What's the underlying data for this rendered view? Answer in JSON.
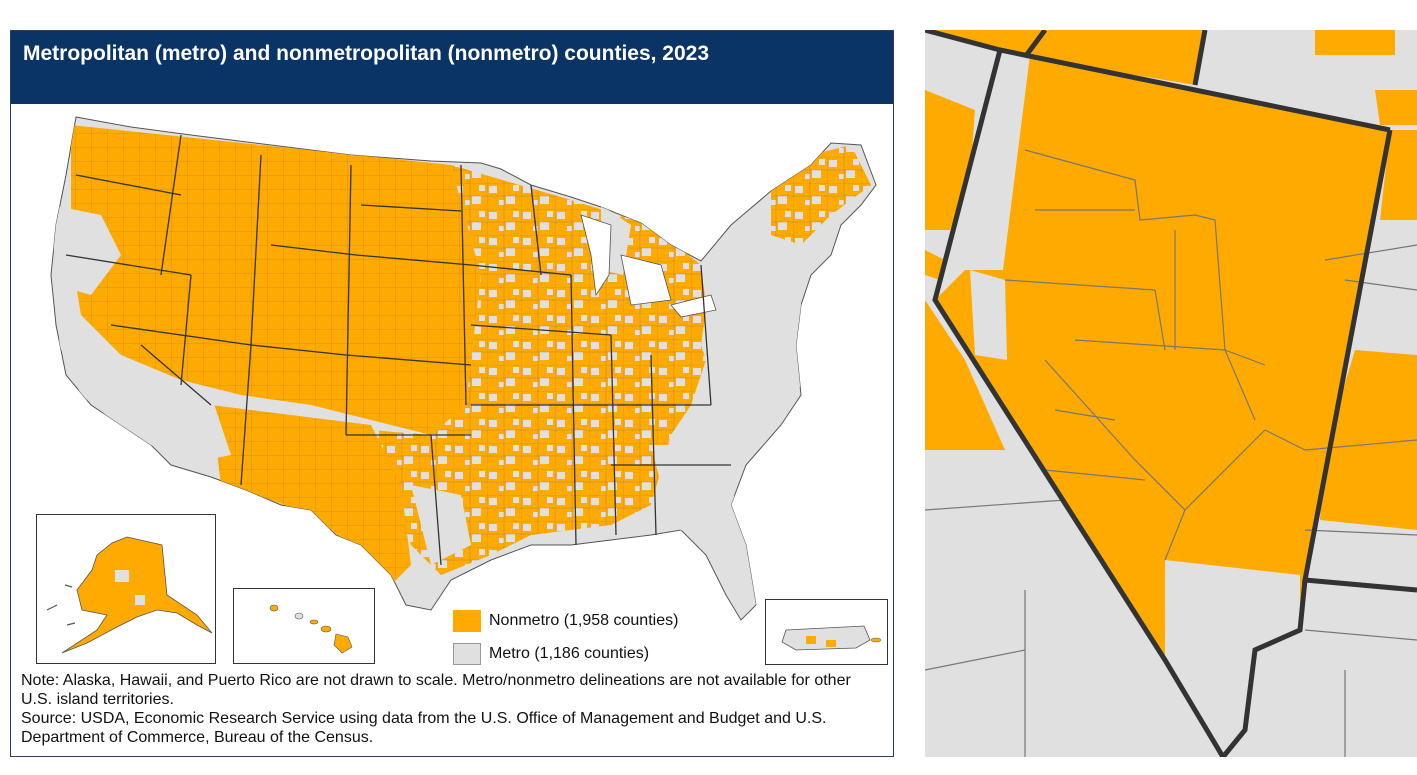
{
  "title": "Metropolitan (metro) and nonmetropolitan (nonmetro) counties, 2023",
  "legend": [
    {
      "label": "Nonmetro (1,958 counties)",
      "color": "#ffaa00"
    },
    {
      "label": "Metro (1,186 counties)",
      "color": "#e0e0e0"
    }
  ],
  "note": "Note: Alaska, Hawaii, and Puerto Rico are not drawn to scale. Metro/nonmetro delineations are not available for other U.S. island territories.",
  "source": "Source: USDA, Economic Research Service using data from the U.S. Office of Management and Budget and U.S. Department of Commerce, Bureau of the Census.",
  "colors": {
    "nonmetro": "#ffaa00",
    "metro": "#e0e0e0",
    "header": "#0b3466",
    "state_border": "#333333",
    "county_border": "#888888"
  }
}
